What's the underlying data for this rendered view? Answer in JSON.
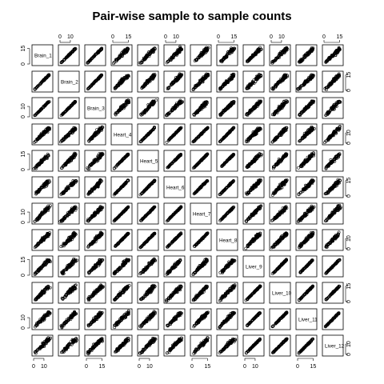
{
  "chart_data": {
    "type": "scatter",
    "title": "Pair-wise sample to sample counts",
    "xlabel": "",
    "ylabel": "",
    "samples": [
      "Brain_1",
      "Brain_2",
      "Brain_3",
      "Heart_4",
      "Heart_5",
      "Heart_6",
      "Heart_7",
      "Heart_8",
      "Liver_9",
      "Liver_10",
      "Liver_11",
      "Liver_12"
    ],
    "groups": {
      "Brain": [
        0,
        1,
        2
      ],
      "Heart": [
        3,
        4,
        5,
        6,
        7
      ],
      "Liver": [
        8,
        9,
        10,
        11
      ]
    },
    "axis_range": [
      0,
      17
    ],
    "tick_values": [
      0,
      10
    ],
    "tick_values_alt": [
      0,
      15
    ],
    "marker": "open-circle",
    "grid": false,
    "legend": "none",
    "colors": {
      "points": "#000000",
      "background": "#ffffff",
      "frame": "#000000"
    }
  }
}
